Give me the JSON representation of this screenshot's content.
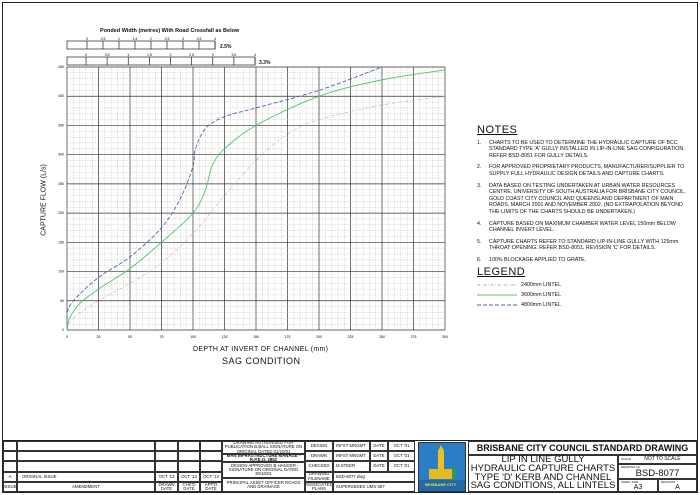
{
  "ruler": {
    "title": "Ponded Width (metres) With Road Crossfall as Below",
    "ticks": [
      "0",
      "0.5",
      "1",
      "1.5",
      "2",
      "2.5",
      "3",
      "3.5",
      "4"
    ],
    "crossfall_1": "2.5%",
    "crossfall_2": "3.3%"
  },
  "chart_data": {
    "type": "line",
    "xlabel": "DEPTH AT INVERT OF CHANNEL (mm)",
    "subtitle": "SAG CONDITION",
    "ylabel": "CAPTURE FLOW (L/s)",
    "xlim": [
      0,
      300
    ],
    "ylim": [
      0,
      450
    ],
    "x_ticks": [
      0,
      25,
      50,
      75,
      100,
      125,
      150,
      175,
      200,
      225,
      250,
      275,
      300
    ],
    "y_ticks": [
      0,
      50,
      100,
      150,
      200,
      250,
      300,
      350,
      400,
      450
    ],
    "grid": true,
    "series": [
      {
        "name": "2400mm LINTEL",
        "color": "#d9a0a0",
        "style": "dash-dot",
        "x": [
          0,
          5,
          25,
          50,
          75,
          100,
          125,
          150,
          175,
          200,
          250,
          300
        ],
        "y": [
          0,
          20,
          50,
          80,
          115,
          165,
          230,
          290,
          335,
          360,
          385,
          400
        ]
      },
      {
        "name": "3600mm LINTEL",
        "color": "#4cc46a",
        "style": "solid",
        "x": [
          0,
          2,
          10,
          25,
          50,
          75,
          100,
          110,
          115,
          125,
          150,
          200,
          250,
          300
        ],
        "y": [
          0,
          20,
          45,
          70,
          105,
          150,
          200,
          240,
          280,
          310,
          350,
          400,
          428,
          445
        ]
      },
      {
        "name": "4800mm LINTEL",
        "color": "#4a66b0",
        "style": "dashed",
        "x": [
          0,
          5,
          25,
          50,
          75,
          90,
          100,
          102,
          110,
          125,
          150,
          200,
          250
        ],
        "y": [
          30,
          50,
          90,
          125,
          175,
          225,
          280,
          310,
          345,
          365,
          380,
          410,
          450
        ]
      }
    ]
  },
  "notes": {
    "title": "NOTES",
    "items": [
      "CHARTS TO BE USED TO DETERMINE THE HYDRAULIC CAPTURE OF BCC STANDARD TYPE 'A' GULLY INSTALLED IN LIP-IN-LINE SAG CONFIGURATION. REFER BSD-8051 FOR GULLY DETAILS.",
      "FOR APPROVED PROPRIETARY PRODUCTS, MANUFACTURER/SUPPLIER TO SUPPLY FULL HYDRAULIC DESIGN DETAILS AND CAPTURE CHARTS.",
      "DATA BASED ON TESTING UNDERTAKEN AT URBAN WATER RESOURCES CENTRE, UNIVERSITY OF SOUTH AUSTRALIA FOR BRISBANE CITY COUNCIL, GOLD COAST CITY COUNCIL AND QUEENSLAND DEPARTMENT OF MAIN ROADS, MARCH 2001 AND NOVEMBER 2002. (NO EXTRAPOLATION BEYOND THE LIMITS OF THE CHARTS SHOULD BE UNDERTAKEN.)",
      "CAPTURE BASED ON MAXIMUM CHAMBER WATER LEVEL 150mm BELOW CHANNEL INVERT LEVEL.",
      "CAPTURE CHARTS REFER TO STANDARD LIP-IN-LINE GULLY WITH 125mm THROAT OPENING. REFER BSD-8051, REVISION 'C' FOR DETAILS.",
      "100% BLOCKAGE APPLIED TO GRATE."
    ],
    "numbers": [
      "1.",
      "2.",
      "3.",
      "4.",
      "5.",
      "6."
    ]
  },
  "legend": {
    "title": "LEGEND"
  },
  "revisions": {
    "issue": "A",
    "amendment": "ORIGINAL ISSUE",
    "drawn": "OCT '13",
    "chkd": "OCT '13",
    "apprd": "OCT '13",
    "headers": {
      "issue": "ISSUE",
      "amendment": "AMENDMENT",
      "drawn": "DRAWN DATE",
      "chkd": "CHK'D DATE",
      "apprd": "APP'D DATE"
    }
  },
  "approval": {
    "authorised": "DRAWING AUTHORISED FOR PUBLICATION B.BALL SIGNATURE ON ORIGINAL DATED 01/10/01",
    "manager": "MAN INFRASTRUCTURE MANAGE - R.P.E.Q. 2852",
    "approved": "DESIGN APPROVED B.HANGER SIGNATURE ON ORIGINAL DATED 30/10/01",
    "officer": "PRINCIPAL ASSET OFFICER ROADS AND DRAINAGE"
  },
  "signoff": {
    "design_label": "DESIGN",
    "design": "INFST MNGMT",
    "drawn_label": "DRAWN",
    "drawn": "INFST MNGMT",
    "checked_label": "CHECKED",
    "checked": "M.STEER",
    "date_label": "DATE",
    "date1": "OCT '01",
    "date2": "OCT '01",
    "date3": "OCT '01",
    "filename_label": "DRAWING FILENAME",
    "filename": "BSD-8077.dwg",
    "assoc_label": "ASSOCIATED PLANS",
    "assoc": "SUPERSEDES UMS-387"
  },
  "logo": {
    "text": "BRISBANE CITY",
    "colors": {
      "bg": "#2a7fc4",
      "accent": "#f0c020"
    }
  },
  "title_block": {
    "council": "BRISBANE CITY COUNCIL STANDARD DRAWING",
    "lines": [
      "LIP IN LINE GULLY",
      "HYDRAULIC CAPTURE CHARTS",
      "TYPE 'D' KERB AND CHANNEL",
      "SAG CONDITIONS, ALL LINTELS"
    ],
    "scale_label": "SCALE",
    "scale": "NOT TO SCALE",
    "number_label": "DRAWING No.",
    "number": "BSD-8077",
    "size_label": "SHEET SIZE",
    "size": "A3",
    "rev_label": "REVISION",
    "rev": "A"
  }
}
